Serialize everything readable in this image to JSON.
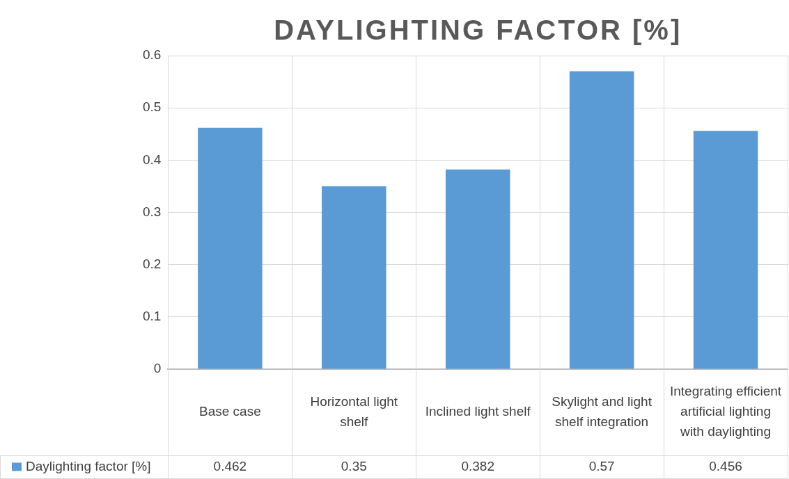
{
  "chart_data": {
    "type": "bar",
    "title": "DAYLIGHTING FACTOR [%]",
    "categories": [
      "Base case",
      "Horizontal light shelf",
      "Inclined light shelf",
      "Skylight and light shelf integration",
      "Integrating efficient artificial lighting with daylighting"
    ],
    "series": [
      {
        "name": "Daylighting factor [%]",
        "color": "#5b9bd5",
        "values": [
          0.462,
          0.35,
          0.382,
          0.57,
          0.456
        ]
      }
    ],
    "ylim": [
      0,
      0.6
    ],
    "yticks": [
      0,
      0.1,
      0.2,
      0.3,
      0.4,
      0.5,
      0.6
    ],
    "grid": true,
    "data_labels": true,
    "legend": "bottom left"
  }
}
